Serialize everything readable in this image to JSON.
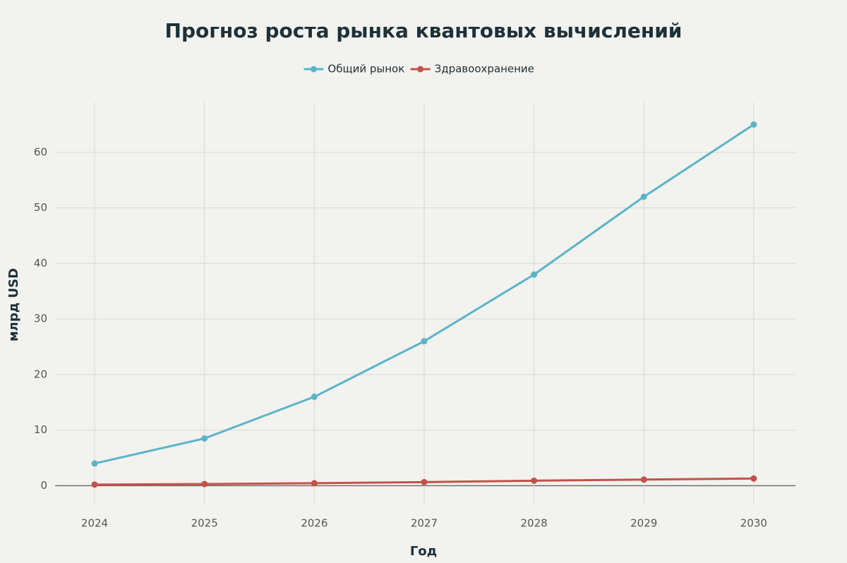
{
  "chart_data": {
    "type": "line",
    "title": "Прогноз роста рынка квантовых вычислений",
    "x_label": "Год",
    "y_label": "млрд USD",
    "x": [
      2024,
      2025,
      2026,
      2027,
      2028,
      2029,
      2030
    ],
    "series": [
      {
        "name": "Общий рынок",
        "color": "#5ab4c8",
        "values": [
          4,
          8.5,
          16,
          26,
          38,
          52,
          65
        ]
      },
      {
        "name": "Здравоохранение",
        "color": "#c4514a",
        "values": [
          0.2,
          0.3,
          0.45,
          0.65,
          0.9,
          1.1,
          1.3
        ]
      }
    ],
    "xlim": [
      2023.64,
      2030.38
    ],
    "xticks": [
      2024,
      2025,
      2026,
      2027,
      2028,
      2029,
      2030
    ],
    "ylim": [
      -3.5,
      69
    ],
    "yticks": [
      0,
      10,
      20,
      30,
      40,
      50,
      60
    ],
    "grid": true,
    "legend": "top"
  }
}
